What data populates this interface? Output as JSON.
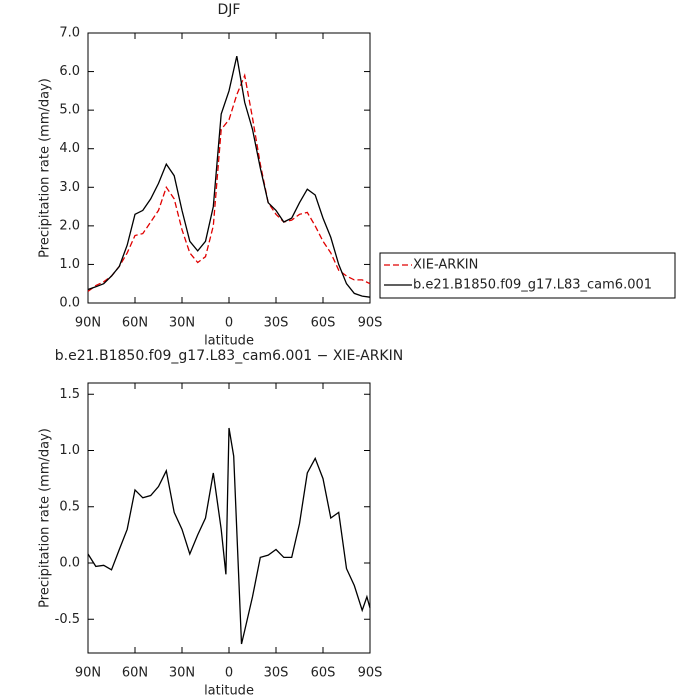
{
  "chart_data": [
    {
      "type": "line",
      "title": "DJF",
      "x_label": "latitude",
      "y_label": "Precipitation rate (mm/day)",
      "x": [
        90,
        85,
        80,
        75,
        70,
        65,
        60,
        55,
        50,
        45,
        40,
        35,
        30,
        25,
        20,
        15,
        10,
        5,
        0,
        -5,
        -10,
        -15,
        -20,
        -25,
        -30,
        -35,
        -40,
        -45,
        -50,
        -55,
        -60,
        -65,
        -70,
        -75,
        -80,
        -85,
        -90
      ],
      "xlim": [
        90,
        -90
      ],
      "xticks": [
        {
          "value": 90,
          "label": "90N"
        },
        {
          "value": 60,
          "label": "60N"
        },
        {
          "value": 30,
          "label": "30N"
        },
        0,
        {
          "value": -30,
          "label": "30S"
        },
        {
          "value": -60,
          "label": "60S"
        },
        {
          "value": -90,
          "label": "90S"
        }
      ],
      "ylim": [
        0,
        7
      ],
      "yticks": [
        {
          "value": 0,
          "label": "0.0"
        },
        {
          "value": 1,
          "label": "1.0"
        },
        {
          "value": 2,
          "label": "2.0"
        },
        {
          "value": 3,
          "label": "3.0"
        },
        {
          "value": 4,
          "label": "4.0"
        },
        {
          "value": 5,
          "label": "5.0"
        },
        {
          "value": 6,
          "label": "6.0"
        },
        {
          "value": 7,
          "label": "7.0"
        }
      ],
      "legend": "right",
      "series": [
        {
          "name": "XIE-ARKIN",
          "color": "#e00000",
          "line_style": "dashed",
          "values": [
            0.3,
            0.45,
            0.55,
            0.7,
            0.95,
            1.3,
            1.75,
            1.8,
            2.1,
            2.4,
            3.0,
            2.7,
            1.9,
            1.3,
            1.05,
            1.2,
            2.0,
            4.5,
            4.75,
            5.4,
            5.9,
            4.8,
            3.6,
            2.6,
            2.3,
            2.1,
            2.15,
            2.3,
            2.35,
            2.0,
            1.6,
            1.3,
            0.85,
            0.7,
            0.6,
            0.6,
            0.5
          ]
        },
        {
          "name": "b.e21.B1850.f09_g17.L83_cam6.001",
          "color": "#000000",
          "line_style": "solid",
          "values": [
            0.35,
            0.42,
            0.5,
            0.7,
            0.95,
            1.5,
            2.3,
            2.4,
            2.7,
            3.1,
            3.6,
            3.3,
            2.4,
            1.6,
            1.35,
            1.6,
            2.5,
            4.9,
            5.5,
            6.4,
            5.2,
            4.5,
            3.5,
            2.6,
            2.4,
            2.1,
            2.2,
            2.6,
            2.95,
            2.8,
            2.2,
            1.7,
            1.0,
            0.5,
            0.25,
            0.18,
            0.15
          ]
        }
      ]
    },
    {
      "type": "line",
      "title": "b.e21.B1850.f09_g17.L83_cam6.001 − XIE-ARKIN",
      "x_label": "latitude",
      "y_label": "Precipitation rate (mm/day)",
      "x": [
        90,
        85,
        80,
        75,
        70,
        65,
        60,
        55,
        50,
        45,
        40,
        35,
        30,
        25,
        20,
        15,
        10,
        5,
        2,
        0,
        -3,
        -8,
        -10,
        -15,
        -20,
        -25,
        -30,
        -35,
        -40,
        -45,
        -50,
        -55,
        -60,
        -65,
        -70,
        -75,
        -80,
        -85,
        -88,
        -90
      ],
      "xlim": [
        90,
        -90
      ],
      "xticks": [
        {
          "value": 90,
          "label": "90N"
        },
        {
          "value": 60,
          "label": "60N"
        },
        {
          "value": 30,
          "label": "30N"
        },
        0,
        {
          "value": -30,
          "label": "30S"
        },
        {
          "value": -60,
          "label": "60S"
        },
        {
          "value": -90,
          "label": "90S"
        }
      ],
      "ylim": [
        -0.8,
        1.6
      ],
      "yticks": [
        -0.5,
        {
          "value": 0,
          "label": "0.0"
        },
        0.5,
        {
          "value": 1,
          "label": "1.0"
        },
        1.5
      ],
      "series": [
        {
          "color": "#000000",
          "line_style": "solid",
          "values": [
            0.08,
            -0.03,
            -0.02,
            -0.06,
            0.12,
            0.3,
            0.65,
            0.58,
            0.6,
            0.68,
            0.82,
            0.45,
            0.3,
            0.08,
            0.25,
            0.4,
            0.8,
            0.3,
            -0.1,
            1.2,
            0.95,
            -0.72,
            -0.6,
            -0.3,
            0.05,
            0.07,
            0.12,
            0.05,
            0.05,
            0.35,
            0.8,
            0.93,
            0.75,
            0.4,
            0.45,
            -0.05,
            -0.2,
            -0.42,
            -0.3,
            -0.4
          ]
        }
      ]
    }
  ]
}
